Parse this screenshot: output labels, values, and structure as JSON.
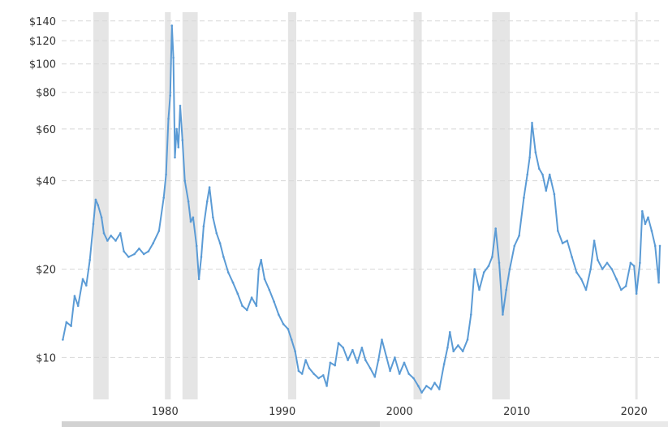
{
  "chart_data": {
    "type": "line",
    "title": "",
    "xlabel": "",
    "ylabel": "",
    "y_scale": "log",
    "xlim": [
      1971.2,
      2022.2
    ],
    "ylim": [
      7.2,
      150
    ],
    "grid": true,
    "grid_style": "dashed horizontal",
    "y_ticks": [
      10,
      20,
      40,
      60,
      80,
      100,
      120,
      140
    ],
    "y_tick_labels": [
      "$10",
      "$20",
      "$40",
      "$60",
      "$80",
      "$100",
      "$120",
      "$140"
    ],
    "x_ticks": [
      1980,
      1990,
      2000,
      2010,
      2020
    ],
    "x_tick_labels": [
      "1980",
      "1990",
      "2000",
      "2010",
      "2020"
    ],
    "recessions": [
      [
        1973.9,
        1975.2
      ],
      [
        1980.0,
        1980.5
      ],
      [
        1981.5,
        1982.8
      ],
      [
        1990.5,
        1991.2
      ],
      [
        2001.2,
        2001.9
      ],
      [
        2007.9,
        2009.4
      ],
      [
        2020.1,
        2020.3
      ]
    ],
    "colors": {
      "line": "#5b9bd5",
      "recession": "#e5e5e5",
      "grid": "#d8d8d8",
      "axis_text": "#333333"
    },
    "series": [
      {
        "points": [
          [
            1971.3,
            11.5
          ],
          [
            1971.6,
            13.2
          ],
          [
            1972.0,
            12.8
          ],
          [
            1972.3,
            16.2
          ],
          [
            1972.6,
            15.0
          ],
          [
            1973.0,
            18.5
          ],
          [
            1973.3,
            17.6
          ],
          [
            1973.6,
            21.5
          ],
          [
            1973.9,
            28.5
          ],
          [
            1974.1,
            34.5
          ],
          [
            1974.3,
            33.0
          ],
          [
            1974.6,
            30.0
          ],
          [
            1974.8,
            26.5
          ],
          [
            1975.1,
            25.0
          ],
          [
            1975.4,
            26.0
          ],
          [
            1975.8,
            25.0
          ],
          [
            1976.2,
            26.5
          ],
          [
            1976.5,
            23.0
          ],
          [
            1976.9,
            22.0
          ],
          [
            1977.4,
            22.5
          ],
          [
            1977.8,
            23.5
          ],
          [
            1978.2,
            22.5
          ],
          [
            1978.6,
            23.0
          ],
          [
            1979.0,
            24.5
          ],
          [
            1979.5,
            27.0
          ],
          [
            1979.9,
            35.0
          ],
          [
            1980.1,
            42.0
          ],
          [
            1980.3,
            65.0
          ],
          [
            1980.45,
            78.0
          ],
          [
            1980.6,
            135.0
          ],
          [
            1980.72,
            105.0
          ],
          [
            1980.85,
            48.0
          ],
          [
            1981.0,
            60.0
          ],
          [
            1981.15,
            52.0
          ],
          [
            1981.3,
            72.0
          ],
          [
            1981.5,
            55.0
          ],
          [
            1981.7,
            40.0
          ],
          [
            1982.0,
            34.0
          ],
          [
            1982.2,
            29.0
          ],
          [
            1982.4,
            30.0
          ],
          [
            1982.7,
            24.0
          ],
          [
            1982.9,
            18.5
          ],
          [
            1983.1,
            22.0
          ],
          [
            1983.3,
            28.0
          ],
          [
            1983.6,
            34.0
          ],
          [
            1983.8,
            38.0
          ],
          [
            1984.1,
            30.0
          ],
          [
            1984.4,
            26.5
          ],
          [
            1984.7,
            24.5
          ],
          [
            1985.0,
            22.0
          ],
          [
            1985.4,
            19.5
          ],
          [
            1985.8,
            18.0
          ],
          [
            1986.2,
            16.5
          ],
          [
            1986.6,
            15.0
          ],
          [
            1987.0,
            14.5
          ],
          [
            1987.4,
            16.0
          ],
          [
            1987.8,
            15.0
          ],
          [
            1988.0,
            20.0
          ],
          [
            1988.2,
            21.5
          ],
          [
            1988.5,
            18.5
          ],
          [
            1988.9,
            17.0
          ],
          [
            1989.3,
            15.5
          ],
          [
            1989.7,
            14.0
          ],
          [
            1990.1,
            13.0
          ],
          [
            1990.5,
            12.5
          ],
          [
            1990.8,
            11.5
          ],
          [
            1991.1,
            10.5
          ],
          [
            1991.4,
            9.0
          ],
          [
            1991.7,
            8.8
          ],
          [
            1992.0,
            9.8
          ],
          [
            1992.3,
            9.2
          ],
          [
            1992.7,
            8.8
          ],
          [
            1993.1,
            8.5
          ],
          [
            1993.5,
            8.7
          ],
          [
            1993.8,
            8.0
          ],
          [
            1994.1,
            9.6
          ],
          [
            1994.5,
            9.4
          ],
          [
            1994.8,
            11.2
          ],
          [
            1995.2,
            10.8
          ],
          [
            1995.6,
            9.8
          ],
          [
            1996.0,
            10.6
          ],
          [
            1996.4,
            9.6
          ],
          [
            1996.8,
            10.8
          ],
          [
            1997.1,
            9.8
          ],
          [
            1997.5,
            9.2
          ],
          [
            1997.9,
            8.6
          ],
          [
            1998.2,
            9.8
          ],
          [
            1998.5,
            11.5
          ],
          [
            1998.9,
            10.0
          ],
          [
            1999.2,
            9.0
          ],
          [
            1999.6,
            10.0
          ],
          [
            2000.0,
            8.8
          ],
          [
            2000.4,
            9.6
          ],
          [
            2000.8,
            8.8
          ],
          [
            2001.2,
            8.5
          ],
          [
            2001.6,
            8.0
          ],
          [
            2001.9,
            7.6
          ],
          [
            2002.3,
            8.0
          ],
          [
            2002.7,
            7.8
          ],
          [
            2003.0,
            8.2
          ],
          [
            2003.4,
            7.8
          ],
          [
            2003.8,
            9.5
          ],
          [
            2004.1,
            10.8
          ],
          [
            2004.3,
            12.2
          ],
          [
            2004.6,
            10.5
          ],
          [
            2005.0,
            11.0
          ],
          [
            2005.4,
            10.5
          ],
          [
            2005.8,
            11.5
          ],
          [
            2006.1,
            14.0
          ],
          [
            2006.4,
            20.0
          ],
          [
            2006.8,
            17.0
          ],
          [
            2007.2,
            19.5
          ],
          [
            2007.6,
            20.5
          ],
          [
            2007.9,
            22.0
          ],
          [
            2008.2,
            27.5
          ],
          [
            2008.5,
            21.0
          ],
          [
            2008.8,
            14.0
          ],
          [
            2009.1,
            17.0
          ],
          [
            2009.4,
            20.0
          ],
          [
            2009.8,
            24.0
          ],
          [
            2010.2,
            26.0
          ],
          [
            2010.6,
            35.0
          ],
          [
            2010.9,
            42.0
          ],
          [
            2011.1,
            48.0
          ],
          [
            2011.3,
            63.0
          ],
          [
            2011.6,
            50.0
          ],
          [
            2011.9,
            44.0
          ],
          [
            2012.2,
            42.0
          ],
          [
            2012.5,
            37.0
          ],
          [
            2012.8,
            42.0
          ],
          [
            2013.2,
            36.0
          ],
          [
            2013.5,
            27.0
          ],
          [
            2013.9,
            24.5
          ],
          [
            2014.3,
            25.0
          ],
          [
            2014.7,
            22.0
          ],
          [
            2015.1,
            19.5
          ],
          [
            2015.5,
            18.5
          ],
          [
            2015.9,
            17.0
          ],
          [
            2016.3,
            20.0
          ],
          [
            2016.6,
            25.0
          ],
          [
            2016.9,
            21.5
          ],
          [
            2017.3,
            20.0
          ],
          [
            2017.7,
            21.0
          ],
          [
            2018.1,
            20.0
          ],
          [
            2018.5,
            18.5
          ],
          [
            2018.9,
            17.0
          ],
          [
            2019.3,
            17.5
          ],
          [
            2019.7,
            21.0
          ],
          [
            2020.0,
            20.5
          ],
          [
            2020.2,
            16.5
          ],
          [
            2020.5,
            21.0
          ],
          [
            2020.7,
            31.5
          ],
          [
            2020.95,
            28.5
          ],
          [
            2021.2,
            30.0
          ],
          [
            2021.5,
            27.0
          ],
          [
            2021.8,
            24.0
          ],
          [
            2022.1,
            18.0
          ],
          [
            2022.2,
            24.0
          ]
        ]
      }
    ]
  }
}
